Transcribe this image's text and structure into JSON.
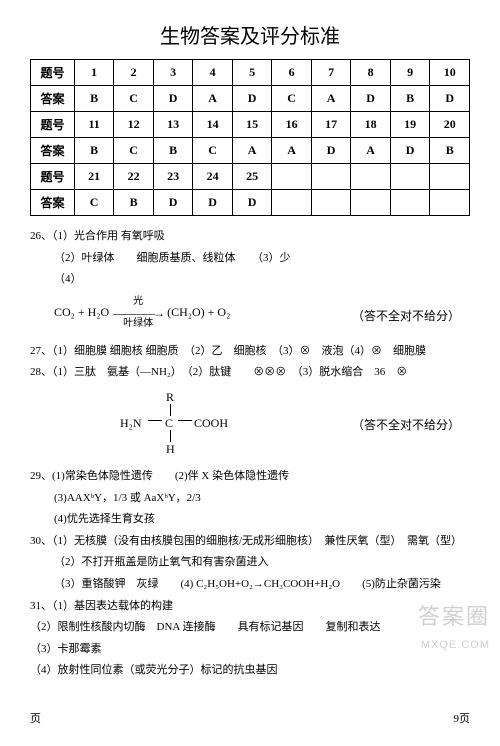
{
  "title": "生物答案及评分标准",
  "table": {
    "header_label": "题号",
    "answer_label": "答案",
    "rows": [
      {
        "nums": [
          "1",
          "2",
          "3",
          "4",
          "5",
          "6",
          "7",
          "8",
          "9",
          "10"
        ],
        "ans": [
          "B",
          "C",
          "D",
          "A",
          "D",
          "C",
          "A",
          "D",
          "B",
          "D"
        ]
      },
      {
        "nums": [
          "11",
          "12",
          "13",
          "14",
          "15",
          "16",
          "17",
          "18",
          "19",
          "20"
        ],
        "ans": [
          "B",
          "C",
          "B",
          "C",
          "A",
          "A",
          "D",
          "A",
          "D",
          "B"
        ]
      },
      {
        "nums": [
          "21",
          "22",
          "23",
          "24",
          "25",
          "",
          "",
          "",
          "",
          ""
        ],
        "ans": [
          "C",
          "B",
          "D",
          "D",
          "D",
          "",
          "",
          "",
          "",
          ""
        ]
      }
    ]
  },
  "q26": {
    "line1": "26、（1）光合作用 有氧呼吸",
    "line2": "（2）叶绿体　　细胞质基质、线粒体　　（3）少",
    "line3": "（4）",
    "eq_left": "CO₂ + H₂O",
    "eq_top": "光",
    "eq_bot": "叶绿体",
    "eq_right": "(CH₂O) + O₂",
    "note": "（答不全对不给分）"
  },
  "q27": "27、（1）细胞膜 细胞核 细胞质　（2）乙　细胞核　（3）⊗　液泡（4）⊗　细胞膜",
  "q28": {
    "line1": "28、（1）三肽　氨基（—NH₂）　（2）肽键　　⊗⊗⊗　（3）脱水缩合　36　⊗",
    "struct": {
      "R": "R",
      "left": "H₂N",
      "C": "C",
      "right": "COOH",
      "H": "H"
    },
    "note": "（答不全对不给分）"
  },
  "q29": {
    "line1": "29、(1)常染色体隐性遗传　　(2)伴 X 染色体隐性遗传",
    "line2": "(3)AAXᵇY，1/3 或 AaXᵇY，2/3",
    "line3": "(4)优先选择生育女孩"
  },
  "q30": {
    "line1": "30、（1）无核膜（没有由核膜包围的细胞核/无成形细胞核）　兼性厌氧（型）　需氧（型）",
    "line2": "（2）不打开瓶盖是防止氧气和有害杂菌进入",
    "line3": "（3）重铬酸钾　灰绿　　(4) C₂H₅OH+O₂→CH₃COOH+H₂O　　(5)防止杂菌污染"
  },
  "q31": {
    "line1": "31、（1）基因表达载体的构建",
    "line2": "（2）限制性核酸内切酶　DNA 连接酶　　具有标记基因　　复制和表达",
    "line3": "（3）卡那霉素",
    "line4": "（4）放射性同位素（或荧光分子）标记的抗虫基因"
  },
  "footer": {
    "left": "页",
    "right": "9页"
  },
  "watermark": {
    "big": "答案圈",
    "small": "MXQE.COM"
  }
}
